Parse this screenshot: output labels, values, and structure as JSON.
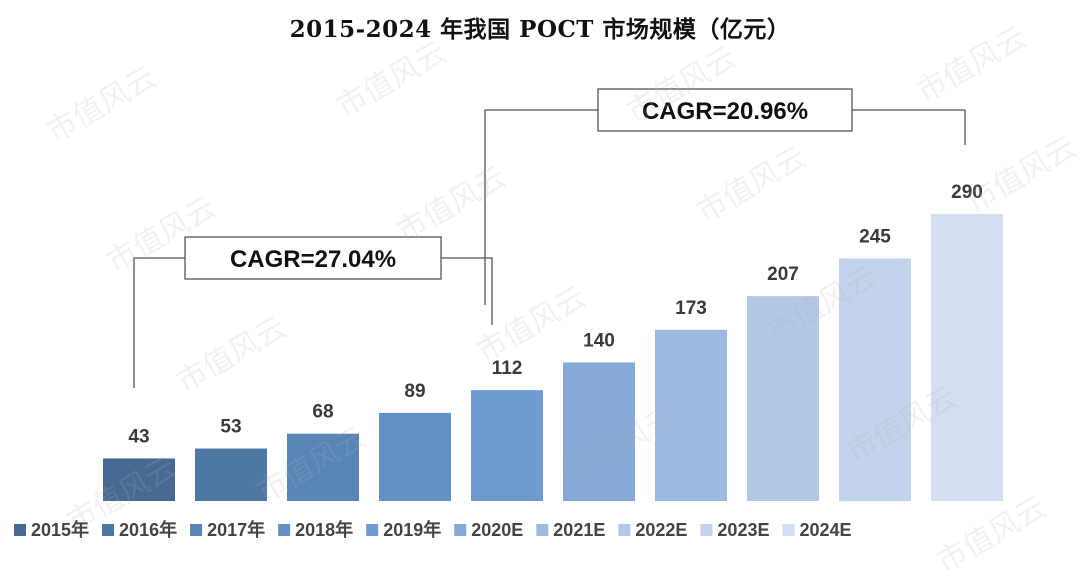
{
  "chart_data": {
    "type": "bar",
    "title": "2015-2024 年我国 POCT 市场规模（亿元）",
    "categories": [
      "2015年",
      "2016年",
      "2017年",
      "2018年",
      "2019年",
      "2020E",
      "2021E",
      "2022E",
      "2023E",
      "2024E"
    ],
    "values": [
      43,
      53,
      68,
      89,
      112,
      140,
      173,
      207,
      245,
      290
    ],
    "colors": [
      "#476a92",
      "#4f77a6",
      "#5884b6",
      "#6490c4",
      "#6f9bd0",
      "#86a9d7",
      "#9fbae0",
      "#b2c8e7",
      "#c3d3ec",
      "#d3def0"
    ],
    "data_labels": [
      "43",
      "53",
      "68",
      "89",
      "112",
      "140",
      "173",
      "207",
      "245",
      "290"
    ],
    "legend": {
      "position": "bottom",
      "entries": [
        "2015年",
        "2016年",
        "2017年",
        "2018年",
        "2019年",
        "2020E",
        "2021E",
        "2022E",
        "2023E",
        "2024E"
      ]
    },
    "annotations": [
      {
        "text": "CAGR=27.04%",
        "from": "2015年",
        "to": "2019年"
      },
      {
        "text": "CAGR=20.96%",
        "from": "2019年",
        "to": "2024E"
      }
    ],
    "ylim": [
      0,
      300
    ],
    "grid": false,
    "xlabel": "",
    "ylabel": ""
  },
  "watermark": "市值风云"
}
